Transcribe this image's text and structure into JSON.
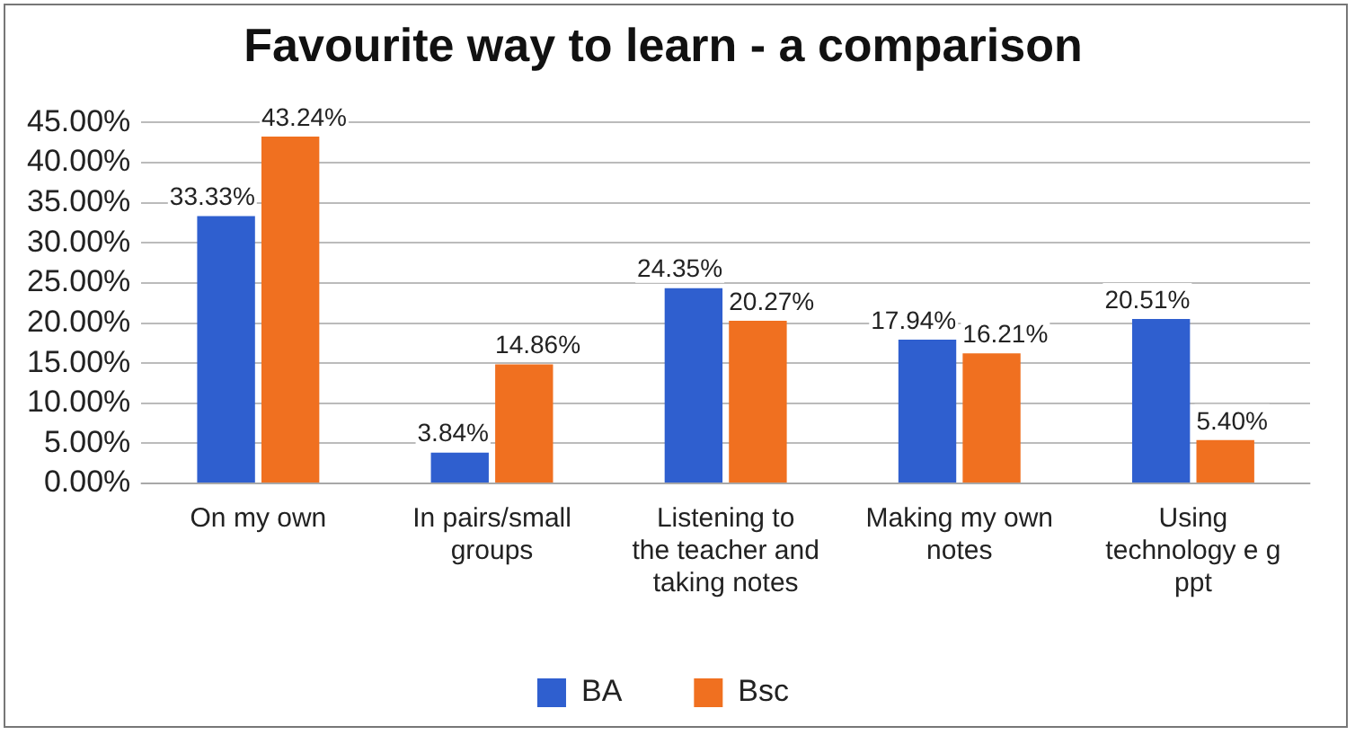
{
  "chart_data": {
    "type": "bar",
    "title": "Favourite way to learn - a comparison",
    "categories": [
      "On my own",
      "In pairs/small groups",
      "Listening to the teacher and taking notes",
      "Making my own notes",
      "Using technology e g ppt"
    ],
    "series": [
      {
        "name": "BA",
        "color": "#2f5fcf",
        "values": [
          33.33,
          3.84,
          24.35,
          17.94,
          20.51
        ],
        "value_labels": [
          "33.33%",
          "3.84%",
          "24.35%",
          "17.94%",
          "20.51%"
        ]
      },
      {
        "name": "Bsc",
        "color": "#f07020",
        "values": [
          43.24,
          14.86,
          20.27,
          16.21,
          5.4
        ],
        "value_labels": [
          "43.24%",
          "14.86%",
          "20.27%",
          "16.21%",
          "5.40%"
        ]
      }
    ],
    "ylim": [
      0,
      45
    ],
    "yticks": [
      {
        "value": 0,
        "label": "0.00%"
      },
      {
        "value": 5,
        "label": "5.00%"
      },
      {
        "value": 10,
        "label": "10.00%"
      },
      {
        "value": 15,
        "label": "15.00%"
      },
      {
        "value": 20,
        "label": "20.00%"
      },
      {
        "value": 25,
        "label": "25.00%"
      },
      {
        "value": 30,
        "label": "30.00%"
      },
      {
        "value": 35,
        "label": "35.00%"
      },
      {
        "value": 40,
        "label": "40.00%"
      },
      {
        "value": 45,
        "label": "45.00%"
      }
    ],
    "grid": "y",
    "legend": "bottom"
  }
}
